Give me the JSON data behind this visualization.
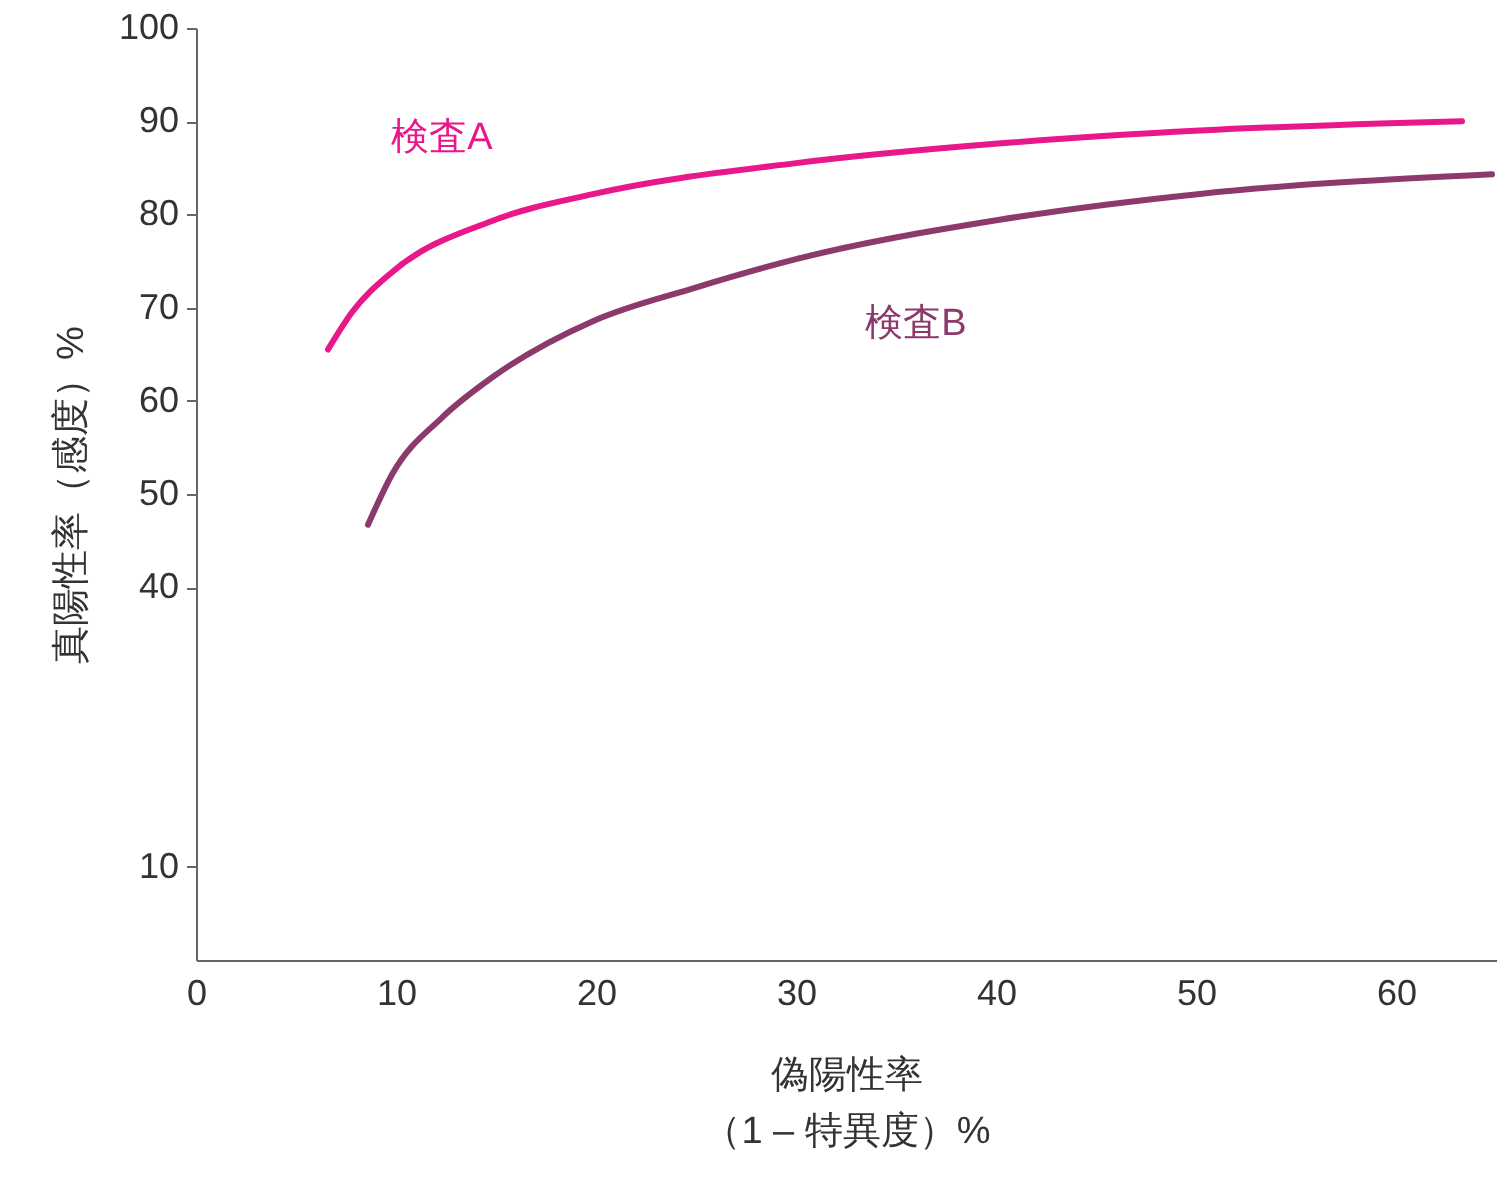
{
  "chart_data": {
    "type": "line",
    "xlabel": "偽陽性率（1 – 特異度）%",
    "ylabel": "真陽性率（感度）%",
    "xlim": [
      0,
      65
    ],
    "xticks": [
      0,
      10,
      20,
      30,
      40,
      50,
      60
    ],
    "ylim": [
      0,
      100
    ],
    "yticks": [
      10,
      40,
      50,
      60,
      70,
      80,
      90,
      100
    ],
    "grid": false,
    "marker": "none",
    "line_style": "solid",
    "series": [
      {
        "name": "検査A",
        "color": "#e8178a",
        "x": [
          6.6,
          7.8,
          9.8,
          14.8,
          19.9,
          30,
          40.1,
          50.2,
          63.3
        ],
        "values": [
          65.5,
          69.5,
          73.8,
          79.3,
          82.2,
          85.5,
          87.6,
          89,
          90
        ]
      },
      {
        "name": "検査B",
        "color": "#8b3a6b",
        "x": [
          8.6,
          9.8,
          12.3,
          14.8,
          19.9,
          24.9,
          30,
          40.1,
          50.2,
          64.8
        ],
        "values": [
          46.7,
          52.1,
          58.2,
          62.5,
          68.6,
          72.1,
          75.2,
          79.4,
          82.2,
          84.3
        ]
      }
    ]
  }
}
